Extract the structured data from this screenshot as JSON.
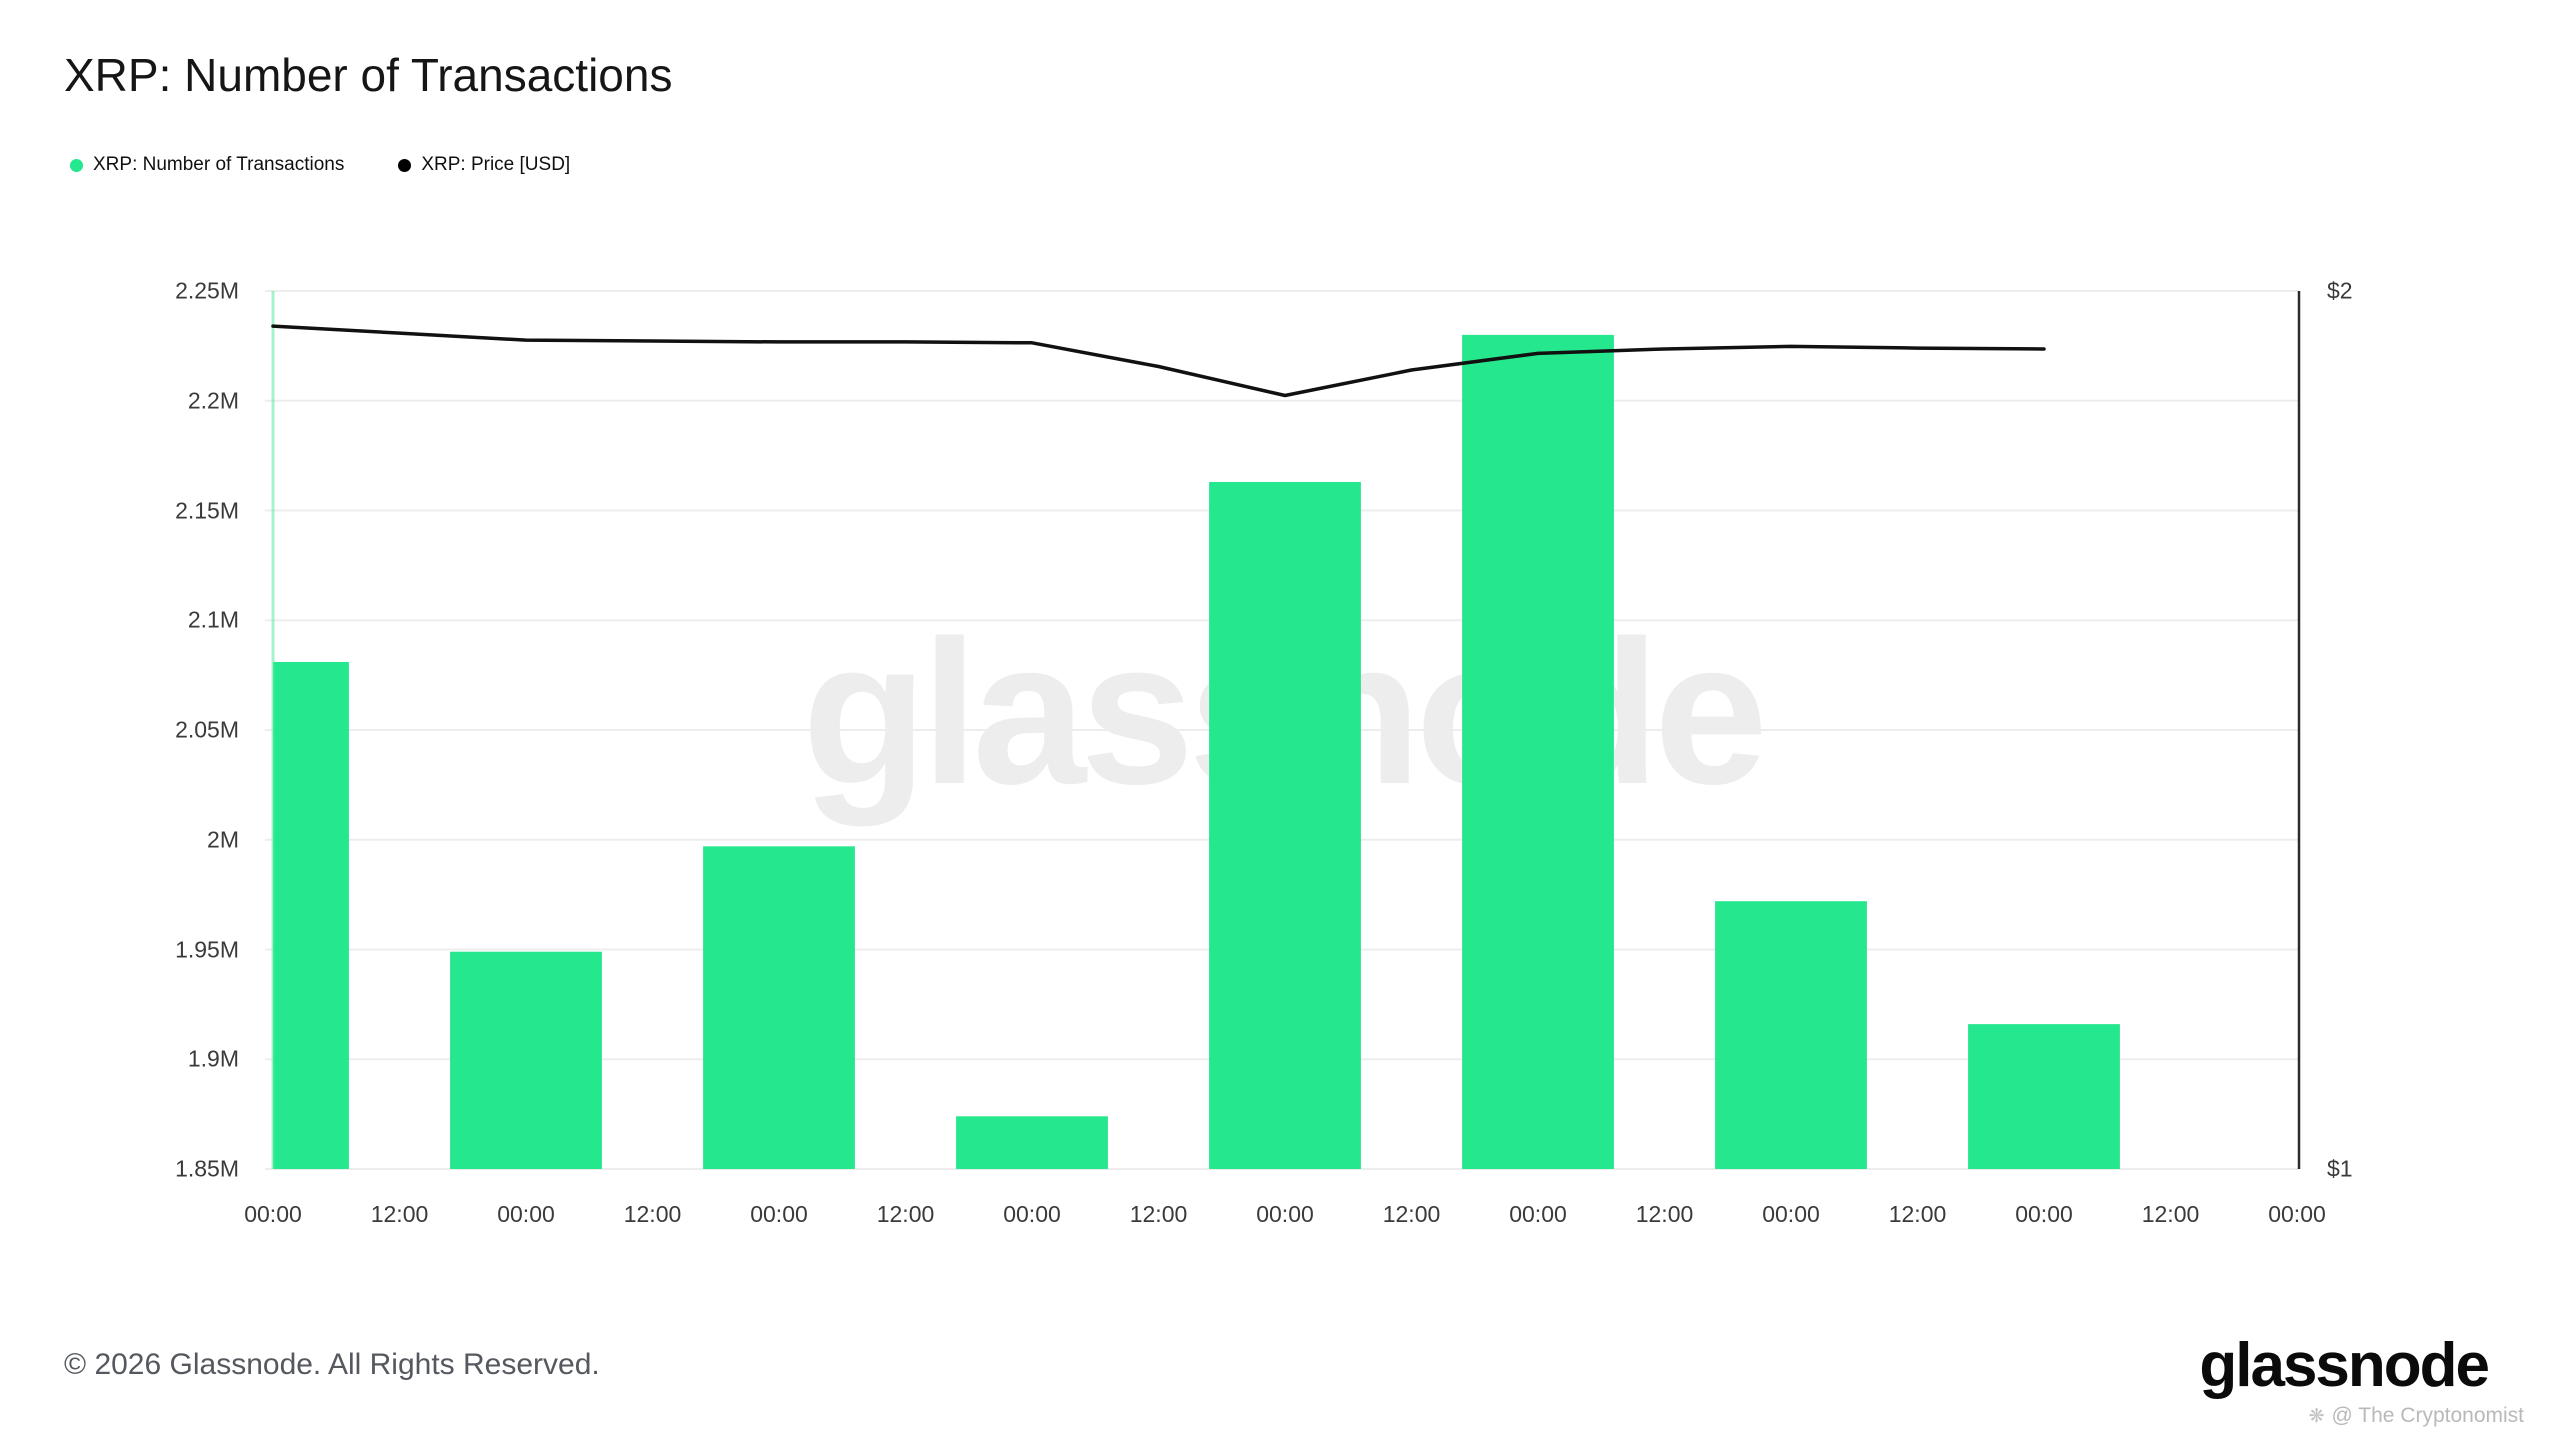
{
  "page": {
    "title": "XRP: Number of Transactions",
    "watermark": "glassnode",
    "footer": {
      "copyright": "© 2026 Glassnode. All Rights Reserved.",
      "brand": "glassnode",
      "attribution": "@ The Cryptonomist",
      "attribution_icon": "❋"
    }
  },
  "legend": [
    {
      "label": "XRP: Number of Transactions",
      "color": "#24E78E"
    },
    {
      "label": "XRP: Price [USD]",
      "color": "#000000"
    }
  ],
  "chart_data": {
    "type": "bar",
    "title": "XRP: Number of Transactions",
    "x_tick_labels": [
      "00:00",
      "12:00",
      "00:00",
      "12:00",
      "00:00",
      "12:00",
      "00:00",
      "12:00",
      "00:00",
      "12:00",
      "00:00",
      "12:00",
      "00:00",
      "12:00",
      "00:00",
      "12:00",
      "00:00"
    ],
    "bar_series": {
      "name": "XRP: Number of Transactions",
      "color": "#24E78E",
      "unit": "transactions (millions)",
      "points": [
        {
          "x": 0,
          "value_m": 2.081
        },
        {
          "x": 2,
          "value_m": 1.949
        },
        {
          "x": 4,
          "value_m": 1.997
        },
        {
          "x": 6,
          "value_m": 1.874
        },
        {
          "x": 8,
          "value_m": 2.163
        },
        {
          "x": 10,
          "value_m": 2.23
        },
        {
          "x": 12,
          "value_m": 1.972
        },
        {
          "x": 14,
          "value_m": 1.916
        }
      ]
    },
    "line_series": {
      "name": "XRP: Price [USD]",
      "color": "#111111",
      "unit": "USD",
      "points": [
        {
          "x": 0,
          "usd": 1.96
        },
        {
          "x": 1,
          "usd": 1.952
        },
        {
          "x": 2,
          "usd": 1.944
        },
        {
          "x": 3,
          "usd": 1.943
        },
        {
          "x": 4,
          "usd": 1.942
        },
        {
          "x": 5,
          "usd": 1.942
        },
        {
          "x": 6,
          "usd": 1.941
        },
        {
          "x": 7,
          "usd": 1.914
        },
        {
          "x": 8,
          "usd": 1.881
        },
        {
          "x": 9,
          "usd": 1.91
        },
        {
          "x": 10,
          "usd": 1.929
        },
        {
          "x": 11,
          "usd": 1.934
        },
        {
          "x": 12,
          "usd": 1.937
        },
        {
          "x": 13,
          "usd": 1.935
        },
        {
          "x": 14,
          "usd": 1.934
        }
      ]
    },
    "left_axis": {
      "min_m": 1.85,
      "max_m": 2.25,
      "tick_step_m": 0.05,
      "tick_labels": [
        "2.25M",
        "2.2M",
        "2.15M",
        "2.1M",
        "2.05M",
        "2M",
        "1.95M",
        "1.9M",
        "1.85M"
      ]
    },
    "right_axis": {
      "min_usd": 1,
      "max_usd": 2,
      "ticks": [
        {
          "label": "$2",
          "usd": 2
        },
        {
          "label": "$1",
          "usd": 1
        }
      ]
    },
    "grid": true,
    "legend_position": "top-left",
    "bar_width_ratio": 1.2,
    "marker_line": {
      "x": 0,
      "color": "rgba(90,235,160,0.55)"
    }
  }
}
